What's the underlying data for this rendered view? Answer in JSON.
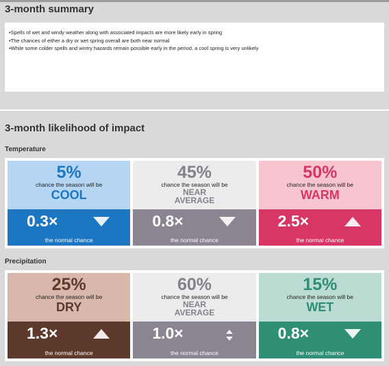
{
  "summary": {
    "title": "3-month summary",
    "bullets": [
      "Spells of wet and windy weather along with associated impacts are more likely early in spring",
      "The chances of either a dry or wet spring overall are both near normal",
      "While some colder spells and wintry hazards remain possible early in the period, a cool spring is very unlikely"
    ]
  },
  "impact": {
    "title": "3-month likelihood of impact",
    "chance_text": "chance the season will be",
    "normal_text": "the normal chance",
    "temperature": {
      "label": "Temperature",
      "columns": [
        {
          "pct": "5%",
          "cat": "COOL",
          "mult": "0.3×",
          "arrow": "down",
          "top_bg": "#b5d6f2",
          "bot_bg": "#1c76c2",
          "accent": "#1c76c2"
        },
        {
          "pct": "45%",
          "cat1": "NEAR",
          "cat2": "AVERAGE",
          "mult": "0.8×",
          "arrow": "down",
          "top_bg": "#ececec",
          "bot_bg": "#8a8590",
          "accent": "#85808c"
        },
        {
          "pct": "50%",
          "cat": "WARM",
          "mult": "2.5×",
          "arrow": "up",
          "top_bg": "#f6c5d0",
          "bot_bg": "#d83664",
          "accent": "#d83664"
        }
      ]
    },
    "precipitation": {
      "label": "Precipitation",
      "columns": [
        {
          "pct": "25%",
          "cat": "DRY",
          "mult": "1.3×",
          "arrow": "up",
          "top_bg": "#d8b8ab",
          "bot_bg": "#5e3a2d",
          "accent": "#5e3a2d"
        },
        {
          "pct": "60%",
          "cat1": "NEAR",
          "cat2": "AVERAGE",
          "mult": "1.0×",
          "arrow": "both",
          "top_bg": "#ececec",
          "bot_bg": "#8a8590",
          "accent": "#85808c"
        },
        {
          "pct": "15%",
          "cat": "WET",
          "mult": "0.8×",
          "arrow": "down",
          "top_bg": "#bcdcd3",
          "bot_bg": "#2e8f75",
          "accent": "#2e8f75"
        }
      ]
    }
  }
}
